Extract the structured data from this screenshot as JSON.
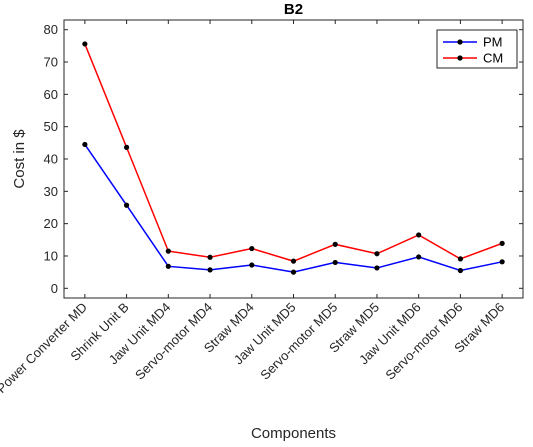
{
  "chart_data": {
    "type": "line",
    "title": "B2",
    "xlabel": "Components",
    "ylabel": "Cost in $",
    "ylim": [
      -3,
      83
    ],
    "yticks": [
      0,
      10,
      20,
      30,
      40,
      50,
      60,
      70,
      80
    ],
    "grid": false,
    "legend_position": "top-right",
    "categories": [
      "Power Converter MD",
      "Shrink Unit B",
      "Jaw Unit MD4",
      "Servo-motor MD4",
      "Straw MD4",
      "Jaw Unit MD5",
      "Servo-motor MD5",
      "Straw MD5",
      "Jaw Unit MD6",
      "Servo-motor MD6",
      "Straw MD6"
    ],
    "series": [
      {
        "name": "PM",
        "color": "#0000ff",
        "values": [
          44.5,
          25.7,
          6.8,
          5.7,
          7.2,
          5.0,
          8.0,
          6.3,
          9.7,
          5.5,
          8.2
        ]
      },
      {
        "name": "CM",
        "color": "#ff0000",
        "values": [
          75.6,
          43.6,
          11.5,
          9.6,
          12.3,
          8.4,
          13.6,
          10.7,
          16.5,
          9.1,
          13.9
        ]
      }
    ]
  }
}
